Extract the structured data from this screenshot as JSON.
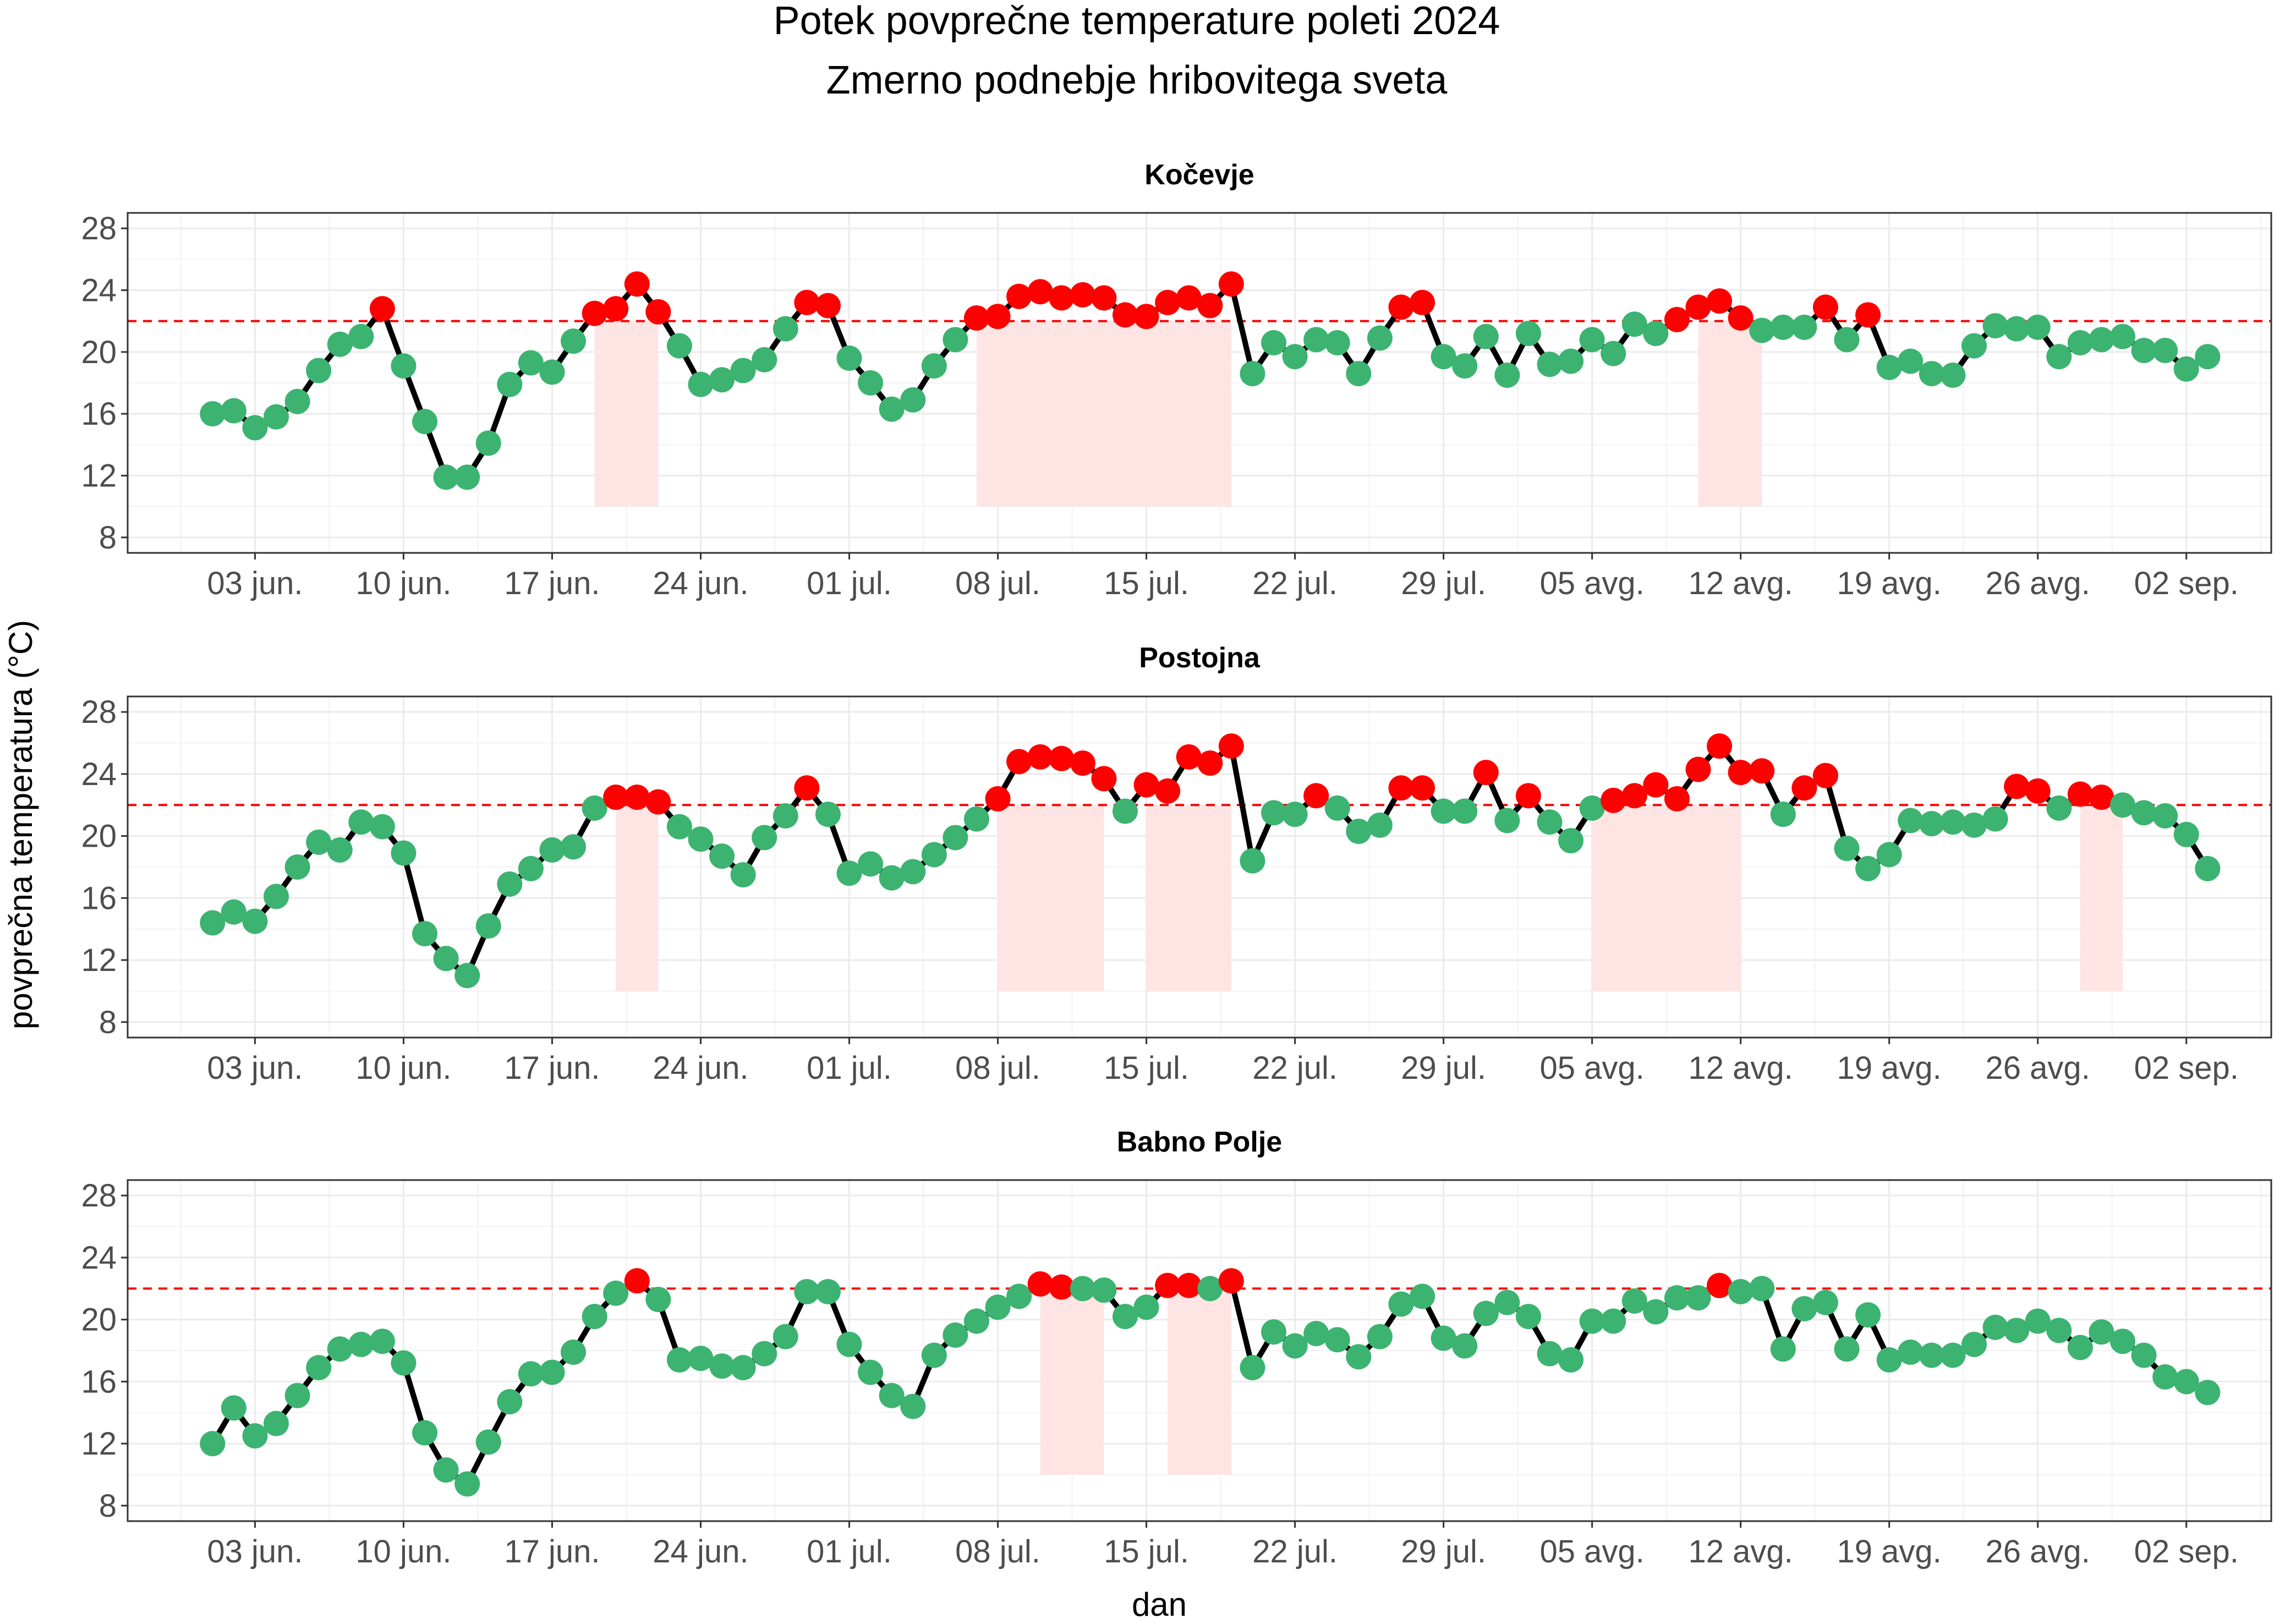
{
  "chart_data": {
    "type": "line",
    "title": "Potek povprečne temperature poleti 2024",
    "subtitle": "Zmerno podnebje hribovitega sveta",
    "xlabel": "dan",
    "ylabel": "povprečna temperatura (°C)",
    "x": [
      "2024-06-01",
      "2024-06-02",
      "2024-06-03",
      "2024-06-04",
      "2024-06-05",
      "2024-06-06",
      "2024-06-07",
      "2024-06-08",
      "2024-06-09",
      "2024-06-10",
      "2024-06-11",
      "2024-06-12",
      "2024-06-13",
      "2024-06-14",
      "2024-06-15",
      "2024-06-16",
      "2024-06-17",
      "2024-06-18",
      "2024-06-19",
      "2024-06-20",
      "2024-06-21",
      "2024-06-22",
      "2024-06-23",
      "2024-06-24",
      "2024-06-25",
      "2024-06-26",
      "2024-06-27",
      "2024-06-28",
      "2024-06-29",
      "2024-06-30",
      "2024-07-01",
      "2024-07-02",
      "2024-07-03",
      "2024-07-04",
      "2024-07-05",
      "2024-07-06",
      "2024-07-07",
      "2024-07-08",
      "2024-07-09",
      "2024-07-10",
      "2024-07-11",
      "2024-07-12",
      "2024-07-13",
      "2024-07-14",
      "2024-07-15",
      "2024-07-16",
      "2024-07-17",
      "2024-07-18",
      "2024-07-19",
      "2024-07-20",
      "2024-07-21",
      "2024-07-22",
      "2024-07-23",
      "2024-07-24",
      "2024-07-25",
      "2024-07-26",
      "2024-07-27",
      "2024-07-28",
      "2024-07-29",
      "2024-07-30",
      "2024-07-31",
      "2024-08-01",
      "2024-08-02",
      "2024-08-03",
      "2024-08-04",
      "2024-08-05",
      "2024-08-06",
      "2024-08-07",
      "2024-08-08",
      "2024-08-09",
      "2024-08-10",
      "2024-08-11",
      "2024-08-12",
      "2024-08-13",
      "2024-08-14",
      "2024-08-15",
      "2024-08-16",
      "2024-08-17",
      "2024-08-18",
      "2024-08-19",
      "2024-08-20",
      "2024-08-21",
      "2024-08-22",
      "2024-08-23",
      "2024-08-24",
      "2024-08-25",
      "2024-08-26",
      "2024-08-27",
      "2024-08-28",
      "2024-08-29",
      "2024-08-30",
      "2024-08-31",
      "2024-09-01",
      "2024-09-02",
      "2024-09-03"
    ],
    "x_tick_labels": [
      "03 jun.",
      "10 jun.",
      "17 jun.",
      "24 jun.",
      "01 jul.",
      "08 jul.",
      "15 jul.",
      "22 jul.",
      "29 jul.",
      "05 avg.",
      "12 avg.",
      "19 avg.",
      "26 avg.",
      "02 sep."
    ],
    "x_ticks": [
      "2024-06-03",
      "2024-06-10",
      "2024-06-17",
      "2024-06-24",
      "2024-07-01",
      "2024-07-08",
      "2024-07-15",
      "2024-07-22",
      "2024-07-29",
      "2024-08-05",
      "2024-08-12",
      "2024-08-19",
      "2024-08-26",
      "2024-09-02"
    ],
    "x_range": [
      "2024-05-28",
      "2024-09-06"
    ],
    "ylim": [
      7,
      29
    ],
    "y_ticks": [
      8,
      12,
      16,
      20,
      24,
      28
    ],
    "threshold": 22,
    "grid": true,
    "colors": {
      "below": "#3cb371",
      "above": "#ff0000",
      "line": "#000000",
      "threshold": "#ff0000",
      "band": "#ffe4e4"
    },
    "panels": [
      {
        "name": "Kočevje",
        "values": [
          16.0,
          16.2,
          15.1,
          15.8,
          16.8,
          18.8,
          20.5,
          21.0,
          22.8,
          19.1,
          15.5,
          11.9,
          11.9,
          14.1,
          17.9,
          19.3,
          18.7,
          20.7,
          22.5,
          22.8,
          24.4,
          22.6,
          20.4,
          17.9,
          18.2,
          18.8,
          19.5,
          21.5,
          23.2,
          23.0,
          19.6,
          18.0,
          16.3,
          16.9,
          19.1,
          20.8,
          22.2,
          22.3,
          23.6,
          23.9,
          23.5,
          23.7,
          23.5,
          22.4,
          22.3,
          23.2,
          23.5,
          23.0,
          24.4,
          18.6,
          20.6,
          19.7,
          20.8,
          20.6,
          18.6,
          20.9,
          22.9,
          23.2,
          19.7,
          19.1,
          21.0,
          18.5,
          21.2,
          19.2,
          19.4,
          20.8,
          19.9,
          21.8,
          21.2,
          22.1,
          22.9,
          23.3,
          22.2,
          21.4,
          21.6,
          21.6,
          22.9,
          20.8,
          22.4,
          19.0,
          19.4,
          18.6,
          18.5,
          20.4,
          21.7,
          21.5,
          21.6,
          19.7,
          20.6,
          20.8,
          21.0,
          20.1,
          20.1,
          18.9,
          19.7
        ],
        "bands": [
          [
            "2024-06-19",
            "2024-06-22"
          ],
          [
            "2024-07-07",
            "2024-07-19"
          ],
          [
            "2024-08-10",
            "2024-08-13"
          ]
        ]
      },
      {
        "name": "Postojna",
        "values": [
          14.4,
          15.1,
          14.5,
          16.1,
          18.0,
          19.6,
          19.1,
          20.9,
          20.6,
          18.9,
          13.7,
          12.1,
          11.0,
          14.2,
          16.9,
          17.9,
          19.1,
          19.3,
          21.8,
          22.5,
          22.5,
          22.2,
          20.6,
          19.8,
          18.7,
          17.5,
          19.9,
          21.3,
          23.1,
          21.4,
          17.6,
          18.2,
          17.3,
          17.7,
          18.8,
          19.9,
          21.1,
          22.4,
          24.8,
          25.1,
          25.0,
          24.7,
          23.7,
          21.6,
          23.3,
          22.9,
          25.1,
          24.7,
          25.8,
          18.4,
          21.5,
          21.4,
          22.6,
          21.8,
          20.3,
          20.7,
          23.1,
          23.1,
          21.6,
          21.6,
          24.1,
          21.0,
          22.6,
          20.9,
          19.7,
          21.8,
          22.3,
          22.6,
          23.3,
          22.4,
          24.3,
          25.8,
          24.1,
          24.2,
          21.4,
          23.1,
          23.9,
          19.2,
          17.9,
          18.8,
          21.0,
          20.8,
          20.9,
          20.7,
          21.1,
          23.2,
          22.9,
          21.8,
          22.7,
          22.5,
          22.0,
          21.5,
          21.3,
          20.1,
          17.9
        ],
        "bands": [
          [
            "2024-06-20",
            "2024-06-22"
          ],
          [
            "2024-07-08",
            "2024-07-13"
          ],
          [
            "2024-07-15",
            "2024-07-19"
          ],
          [
            "2024-08-05",
            "2024-08-12"
          ],
          [
            "2024-08-28",
            "2024-08-30"
          ]
        ]
      },
      {
        "name": "Babno Polje",
        "values": [
          12.0,
          14.3,
          12.5,
          13.3,
          15.1,
          16.9,
          18.1,
          18.4,
          18.6,
          17.2,
          12.7,
          10.3,
          9.4,
          12.1,
          14.7,
          16.5,
          16.6,
          17.9,
          20.2,
          21.7,
          22.5,
          21.3,
          17.4,
          17.5,
          17.0,
          16.9,
          17.8,
          18.9,
          21.8,
          21.8,
          18.4,
          16.6,
          15.1,
          14.4,
          17.7,
          19.0,
          19.9,
          20.8,
          21.5,
          22.3,
          22.1,
          22.0,
          21.9,
          20.2,
          20.8,
          22.2,
          22.2,
          22.0,
          22.5,
          16.9,
          19.2,
          18.3,
          19.1,
          18.7,
          17.6,
          18.9,
          21.0,
          21.5,
          18.8,
          18.3,
          20.4,
          21.1,
          20.2,
          17.8,
          17.4,
          19.9,
          19.9,
          21.2,
          20.5,
          21.4,
          21.4,
          22.2,
          21.8,
          22.0,
          18.1,
          20.7,
          21.1,
          18.1,
          20.3,
          17.4,
          17.9,
          17.7,
          17.7,
          18.4,
          19.5,
          19.3,
          19.9,
          19.3,
          18.2,
          19.2,
          18.6,
          17.7,
          16.3,
          16.0,
          15.3
        ],
        "bands": [
          [
            "2024-07-10",
            "2024-07-13"
          ],
          [
            "2024-07-16",
            "2024-07-19"
          ]
        ]
      }
    ]
  }
}
